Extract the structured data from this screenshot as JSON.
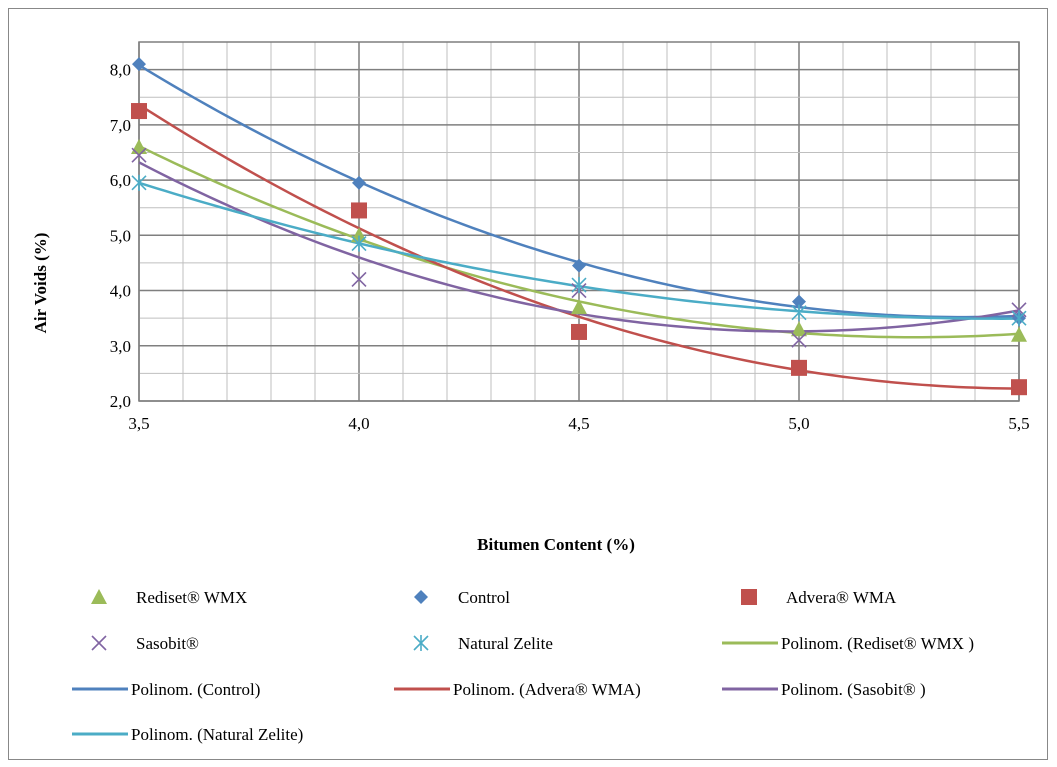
{
  "chart_data": {
    "type": "scatter",
    "xlabel": "Bitumen Content (%)",
    "ylabel": "Air Voids (%)",
    "xlim": [
      3.5,
      5.5
    ],
    "ylim": [
      2.0,
      8.5
    ],
    "x_ticks": [
      "3,5",
      "4,0",
      "4,5",
      "5,0",
      "5,5"
    ],
    "y_ticks": [
      "2,0",
      "3,0",
      "4,0",
      "5,0",
      "6,0",
      "7,0",
      "8,0"
    ],
    "grid": true,
    "legend_position": "bottom",
    "x": [
      3.5,
      4.0,
      4.5,
      5.0,
      5.5
    ],
    "series": [
      {
        "name": "Rediset® WMX",
        "values": [
          6.6,
          5.0,
          3.7,
          3.3,
          3.2
        ],
        "color": "#9bbb59",
        "marker": "triangle",
        "trend": "Polinom. (Rediset® WMX )"
      },
      {
        "name": "Control",
        "values": [
          8.1,
          5.95,
          4.45,
          3.8,
          3.5
        ],
        "color": "#4f81bd",
        "marker": "diamond",
        "trend": "Polinom. (Control)"
      },
      {
        "name": "Advera® WMA",
        "values": [
          7.25,
          5.45,
          3.25,
          2.6,
          2.25
        ],
        "color": "#c0504d",
        "marker": "square",
        "trend": "Polinom. (Advera® WMA)"
      },
      {
        "name": "Sasobit®",
        "values": [
          6.45,
          4.2,
          4.0,
          3.1,
          3.65
        ],
        "color": "#8064a2",
        "marker": "x",
        "trend": "Polinom. (Sasobit® )"
      },
      {
        "name": "Natural Zelite",
        "values": [
          5.95,
          4.85,
          4.1,
          3.6,
          3.5
        ],
        "color": "#4bacc6",
        "marker": "star",
        "trend": "Polinom. (Natural Zelite)"
      }
    ],
    "legend": [
      {
        "label": "Rediset® WMX",
        "kind": "marker",
        "series": 0
      },
      {
        "label": "Control",
        "kind": "marker",
        "series": 1
      },
      {
        "label": "Advera® WMA",
        "kind": "marker",
        "series": 2
      },
      {
        "label": "Sasobit®",
        "kind": "marker",
        "series": 3
      },
      {
        "label": "Natural Zelite",
        "kind": "marker",
        "series": 4
      },
      {
        "label": "Polinom. (Rediset® WMX )",
        "kind": "line",
        "series": 0
      },
      {
        "label": "Polinom. (Control)",
        "kind": "line",
        "series": 1
      },
      {
        "label": "Polinom. (Advera® WMA)",
        "kind": "line",
        "series": 2
      },
      {
        "label": "Polinom. (Sasobit® )",
        "kind": "line",
        "series": 3
      },
      {
        "label": "Polinom. (Natural Zelite)",
        "kind": "line",
        "series": 4
      }
    ]
  }
}
